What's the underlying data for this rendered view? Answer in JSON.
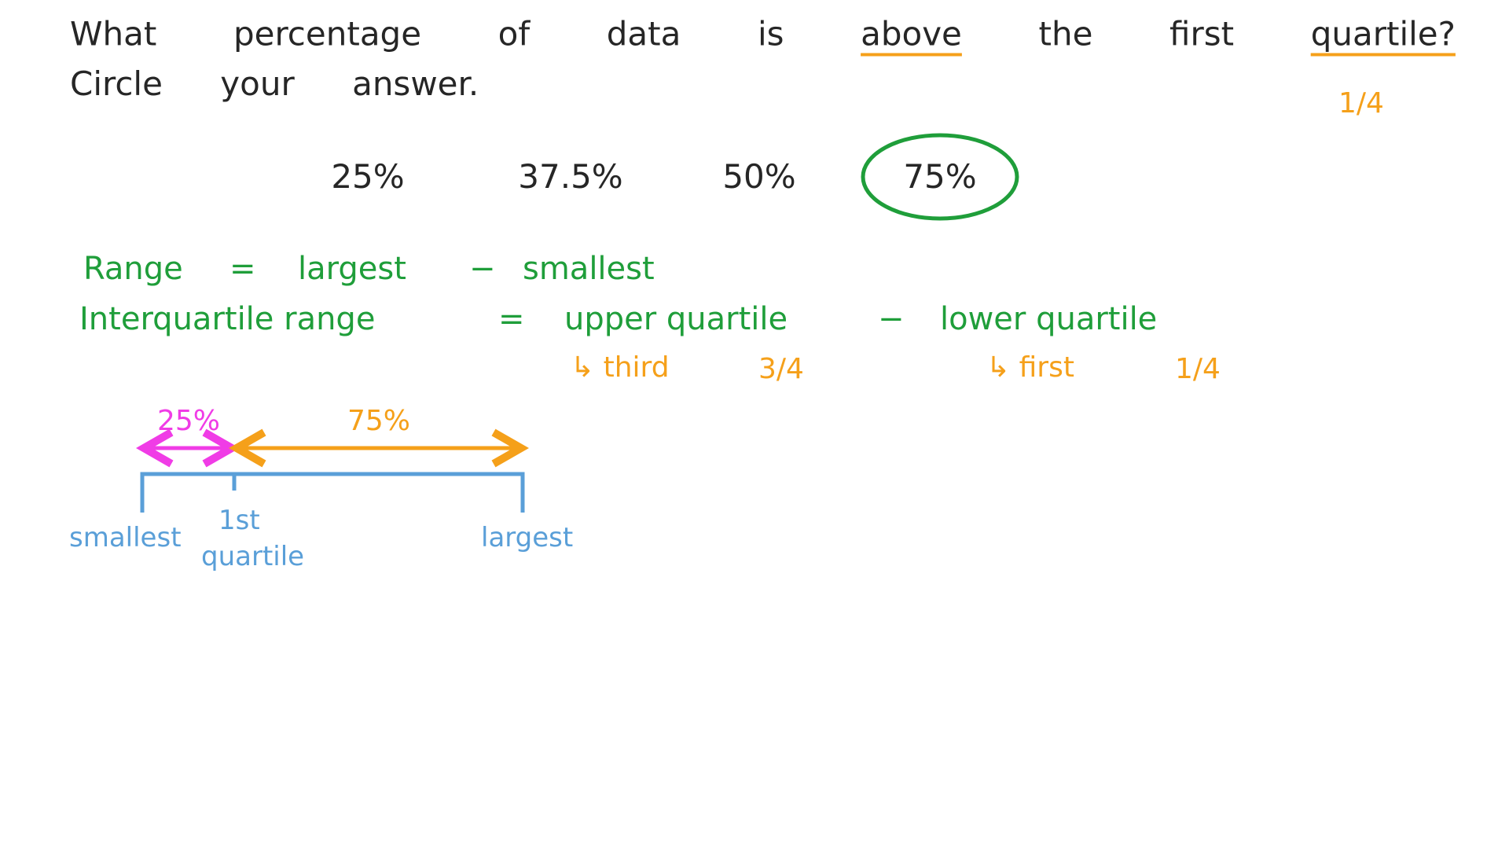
{
  "question": {
    "line1": [
      "What",
      "percentage",
      "of",
      "data",
      "is",
      "above",
      "the",
      "first",
      "quartile?"
    ],
    "underlined": [
      5,
      8
    ],
    "line2": "Circle your answer.",
    "annotation": "1/4"
  },
  "options": {
    "items": [
      "25%",
      "37.5%",
      "50%",
      "75%"
    ],
    "circled": 3
  },
  "notes": {
    "range": [
      "Range",
      "=",
      "largest",
      "−",
      "smallest"
    ],
    "iqr": [
      "Interquartile range",
      "=",
      "upper quartile",
      "−",
      "lower quartile"
    ],
    "upper": [
      "↳ third",
      "3/4"
    ],
    "lower": [
      "↳ first",
      "1/4"
    ]
  },
  "diagram": {
    "left_share": "25%",
    "right_share": "75%",
    "smallest": "smallest",
    "q1_line1": "1st",
    "q1_line2": "quartile",
    "largest": "largest"
  }
}
